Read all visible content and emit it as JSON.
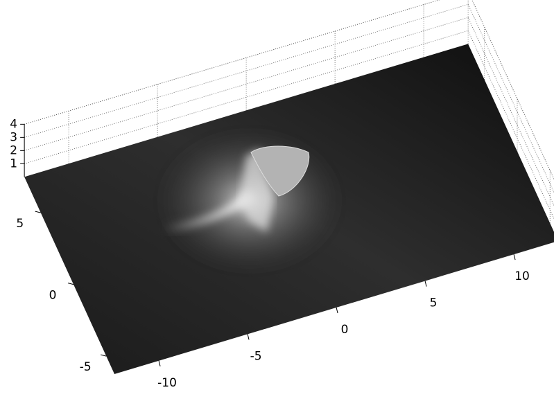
{
  "chart_data": {
    "type": "surface",
    "colormap": "gray",
    "grid": true,
    "xlim": [
      -12.5,
      12.5
    ],
    "ylim": [
      -6.25,
      7.5
    ],
    "zlim": [
      0,
      4
    ],
    "xticks": [
      -10,
      -5,
      0,
      5,
      10
    ],
    "yticks": [
      -5,
      0,
      5
    ],
    "zticks": [
      1,
      2,
      3,
      4
    ]
  }
}
